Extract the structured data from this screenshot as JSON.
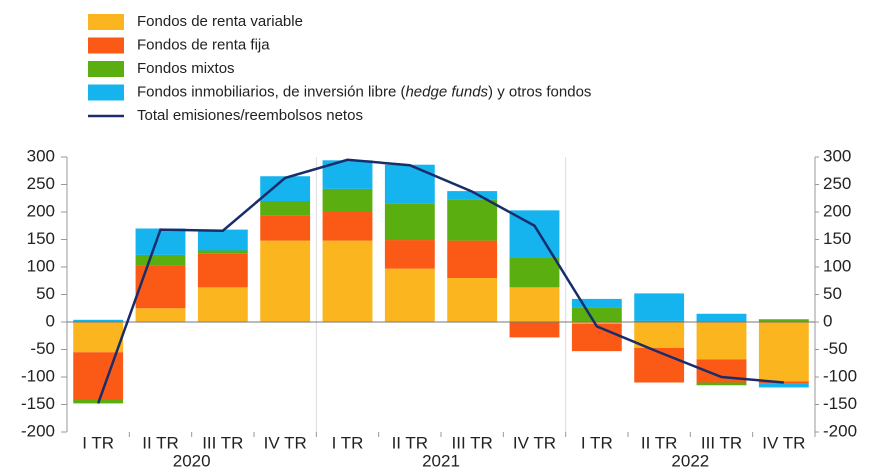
{
  "chart_data": {
    "type": "stacked_bar_line",
    "categories": [
      "I TR",
      "II TR",
      "III TR",
      "IV TR",
      "I TR",
      "II TR",
      "III TR",
      "IV TR",
      "I TR",
      "II TR",
      "III TR",
      "IV TR"
    ],
    "year_labels": [
      "2020",
      "2021",
      "2022"
    ],
    "legend_suffix_italic": "hedge funds",
    "series": [
      {
        "name": "Fondos de renta variable",
        "color": "#fbb51f",
        "values": [
          -55,
          25,
          63,
          148,
          148,
          97,
          80,
          63,
          -3,
          -47,
          -68,
          -108
        ]
      },
      {
        "name": "Fondos de renta fija",
        "color": "#fb5a16",
        "values": [
          -85,
          77,
          62,
          45,
          52,
          52,
          68,
          -28,
          -50,
          -63,
          -42,
          -3
        ]
      },
      {
        "name": "Fondos mixtos",
        "color": "#5aae0f",
        "values": [
          -8,
          20,
          5,
          27,
          42,
          67,
          75,
          55,
          27,
          2,
          -5,
          5
        ]
      },
      {
        "name": "Fondos inmobiliarios, de inversión libre (hedge funds) y otros fondos",
        "color": "#15b4ee",
        "values": [
          4,
          48,
          38,
          45,
          52,
          70,
          15,
          85,
          15,
          50,
          15,
          -8
        ]
      },
      {
        "name": "Total emisiones/reembolsos netos",
        "color": "#1a2d6b",
        "kind": "line",
        "values": [
          -148,
          168,
          166,
          262,
          295,
          285,
          237,
          175,
          -8,
          -55,
          -100,
          -110
        ]
      }
    ],
    "ylim": [
      -200,
      300
    ],
    "yticks": [
      -200,
      -150,
      -100,
      -50,
      0,
      50,
      100,
      150,
      200,
      250,
      300
    ],
    "y2lim": [
      -200,
      300
    ],
    "y2ticks": [
      -200,
      -150,
      -100,
      -50,
      0,
      50,
      100,
      150,
      200,
      250,
      300
    ]
  }
}
